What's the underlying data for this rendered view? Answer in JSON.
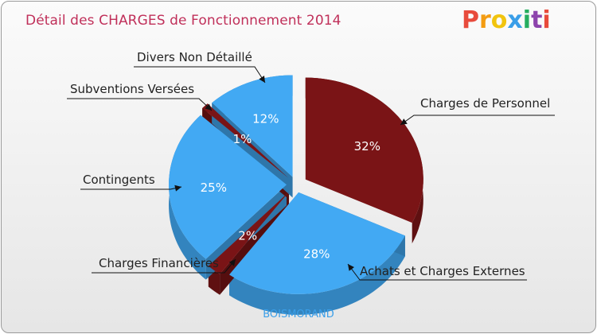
{
  "title": "Détail des CHARGES de Fonctionnement 2014",
  "logo": {
    "text": "Proxiti",
    "letters": [
      {
        "ch": "P",
        "color": "#e84b3c"
      },
      {
        "ch": "r",
        "color": "#f39c12"
      },
      {
        "ch": "o",
        "color": "#f1c40f"
      },
      {
        "ch": "x",
        "color": "#3a9ee8"
      },
      {
        "ch": "i",
        "color": "#27ae60"
      },
      {
        "ch": "t",
        "color": "#8e44ad"
      },
      {
        "ch": "i",
        "color": "#e84b3c"
      }
    ]
  },
  "commune": "BOISMORAND",
  "colors": {
    "blue": "#42a9f3",
    "red": "#7a1416"
  },
  "chart_data": {
    "type": "pie",
    "title": "Détail des CHARGES de Fonctionnement 2014",
    "slices": [
      {
        "label": "Charges de Personnel",
        "value": 32,
        "pct_label": "32%",
        "color": "#7a1416"
      },
      {
        "label": "Achats et Charges Externes",
        "value": 28,
        "pct_label": "28%",
        "color": "#42a9f3"
      },
      {
        "label": "Charges Financières",
        "value": 2,
        "pct_label": "2%",
        "color": "#7a1416"
      },
      {
        "label": "Contingents",
        "value": 25,
        "pct_label": "25%",
        "color": "#42a9f3"
      },
      {
        "label": "Subventions Versées",
        "value": 1,
        "pct_label": "1%",
        "color": "#7a1416"
      },
      {
        "label": "Divers Non Détaillé",
        "value": 12,
        "pct_label": "12%",
        "color": "#42a9f3"
      }
    ]
  }
}
